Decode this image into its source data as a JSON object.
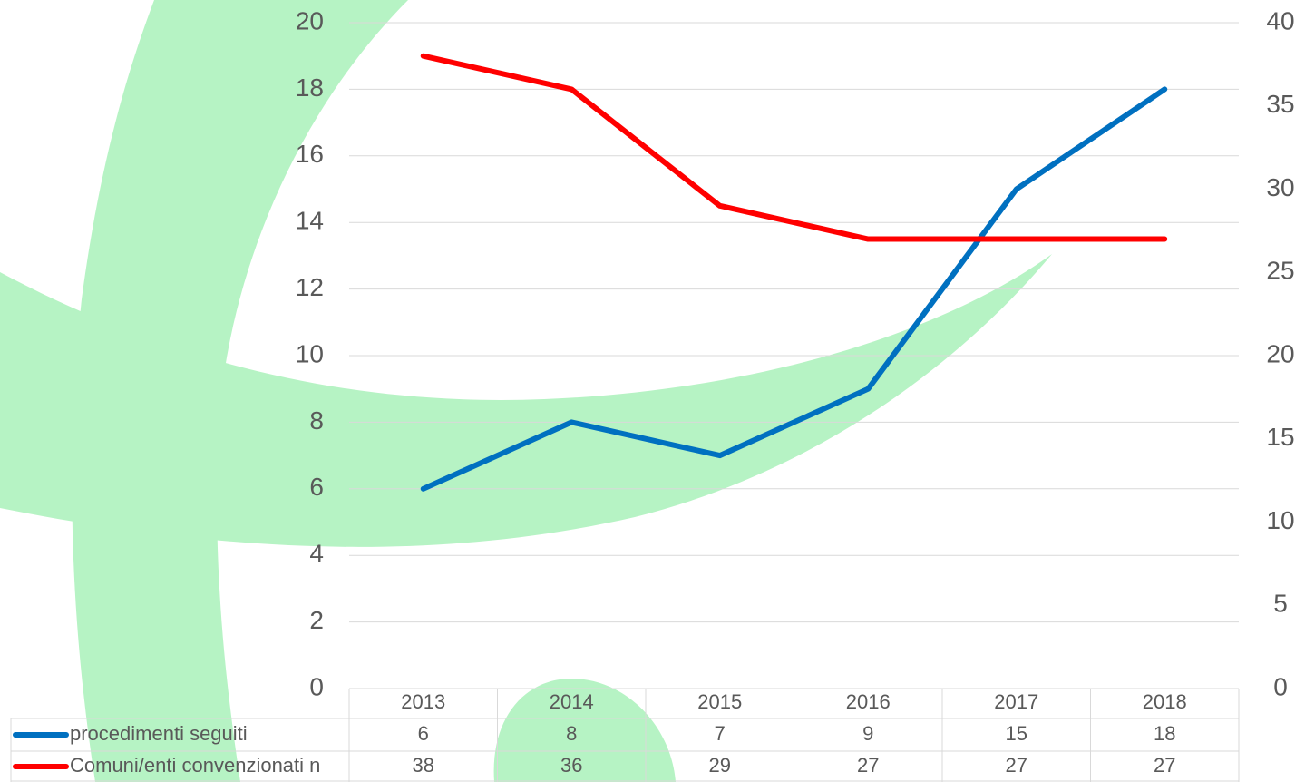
{
  "chart_data": {
    "type": "line",
    "categories": [
      "2013",
      "2014",
      "2015",
      "2016",
      "2017",
      "2018"
    ],
    "series": [
      {
        "name": "procedimenti seguiti",
        "color": "#0070c0",
        "values": [
          6,
          8,
          7,
          9,
          15,
          18
        ]
      },
      {
        "name": "Comuni/enti convenzionati n",
        "color": "#ff0000",
        "values": [
          38,
          36,
          29,
          27,
          27,
          27
        ],
        "axis": "y2"
      }
    ],
    "ylim": [
      0,
      20
    ],
    "yticks": [
      0,
      2,
      4,
      6,
      8,
      10,
      12,
      14,
      16,
      18,
      20
    ],
    "y2lim": [
      0,
      40
    ],
    "y2ticks": [
      0,
      5,
      10,
      15,
      20,
      25,
      30,
      35,
      40
    ],
    "grid": true
  }
}
